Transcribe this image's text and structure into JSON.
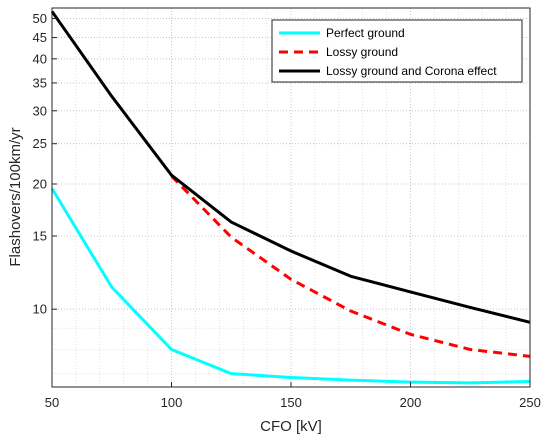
{
  "chart_data": {
    "type": "line",
    "title": "",
    "xlabel": "CFO [kV]",
    "ylabel": "Flashovers/100km/yr",
    "xlim": [
      50,
      250
    ],
    "ylim": [
      6.5,
      53
    ],
    "y_scale": "log",
    "grid": true,
    "minor_grid": true,
    "x_ticks": [
      50,
      100,
      150,
      200,
      250
    ],
    "y_ticks": [
      10,
      15,
      20,
      25,
      30,
      35,
      40,
      45,
      50
    ],
    "y_tick_labels": [
      "10",
      "15",
      "20",
      "25",
      "30",
      "35",
      "40",
      "45",
      "50"
    ],
    "legend_position": "top-right",
    "series": [
      {
        "name": "Perfect ground",
        "color": "#00ffff",
        "line_style": "solid",
        "x": [
          50,
          75,
          100,
          125,
          150,
          175,
          200,
          225,
          250
        ],
        "y": [
          19.5,
          11.3,
          8.0,
          7.0,
          6.85,
          6.75,
          6.68,
          6.65,
          6.7
        ]
      },
      {
        "name": "Lossy ground",
        "color": "#ff0000",
        "line_style": "dashed",
        "x": [
          100,
          125,
          150,
          175,
          200,
          225,
          250
        ],
        "y": [
          20.9,
          14.9,
          11.8,
          9.9,
          8.7,
          8.0,
          7.7
        ]
      },
      {
        "name": "Lossy ground and Corona effect",
        "color": "#000000",
        "line_style": "solid",
        "x": [
          50,
          75,
          100,
          125,
          150,
          175,
          200,
          225,
          250
        ],
        "y": [
          52,
          32.5,
          21,
          16.2,
          13.8,
          12.0,
          11.0,
          10.1,
          9.3
        ]
      }
    ]
  }
}
